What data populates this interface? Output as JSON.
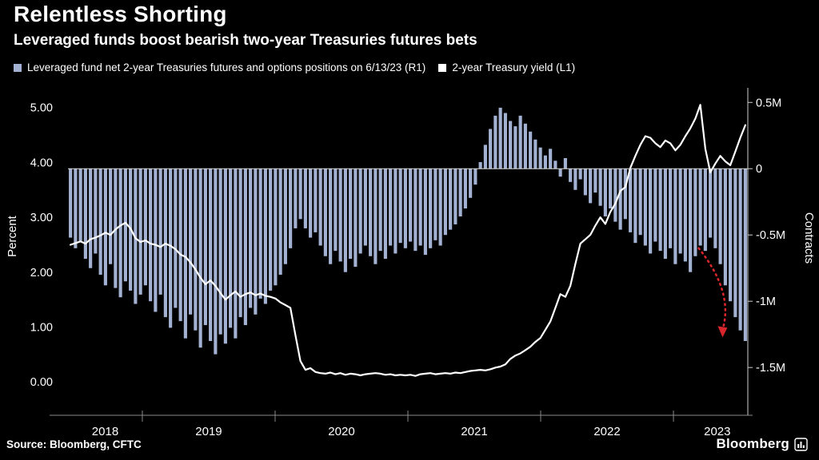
{
  "header": {
    "title": "Relentless Shorting",
    "subtitle": "Leveraged funds boost bearish two-year Treasuries futures bets"
  },
  "legend": {
    "items": [
      {
        "label": "Leveraged fund net 2-year Treasuries futures and options positions on 6/13/23 (R1)",
        "color": "#a3b2d2"
      },
      {
        "label": "2-year Treasury yield (L1)",
        "color": "#ffffff"
      }
    ]
  },
  "footer": {
    "source": "Source: Bloomberg, CFTC",
    "logo_text": "Bloomberg"
  },
  "colors": {
    "background": "#000000",
    "bar": "#a3b2d2",
    "line": "#ffffff",
    "axis_line": "#cfcfcf",
    "x_axis_line": "#8a8a8a",
    "zero_line": "#d8d8d8",
    "annotation_red": "#d8262c"
  },
  "chart_data": {
    "type": "combo",
    "title": "Relentless Shorting",
    "subtitle": "Leveraged funds boost bearish two-year Treasuries futures bets",
    "x_start": 2018.44,
    "x_end": 2023.56,
    "x_tick_labels": [
      "2018",
      "2019",
      "2020",
      "2021",
      "2022",
      "2023"
    ],
    "x_tick_label_positions": [
      2018.72,
      2019.5,
      2020.5,
      2021.5,
      2022.5,
      2023.33
    ],
    "x_boundary_ticks": [
      2019,
      2020,
      2021,
      2022,
      2023
    ],
    "grid": false,
    "legend_position": "top",
    "axes": {
      "left": {
        "label": "Percent",
        "range": [
          -0.39,
          5.36
        ],
        "ticks": [
          {
            "v": 5,
            "label": "5.00"
          },
          {
            "v": 4,
            "label": "4.00"
          },
          {
            "v": 3,
            "label": "3.00"
          },
          {
            "v": 2,
            "label": "2.00"
          },
          {
            "v": 1,
            "label": "1.00"
          },
          {
            "v": 0,
            "label": "0.00"
          }
        ]
      },
      "right": {
        "label": "Contracts",
        "range": [
          -1.77,
          0.61
        ],
        "ticks": [
          {
            "v": 0.5,
            "label": "0.5M"
          },
          {
            "v": 0,
            "label": "0"
          },
          {
            "v": -0.5,
            "label": "-0.5M"
          },
          {
            "v": -1,
            "label": "-1M"
          },
          {
            "v": -1.5,
            "label": "-1.5M"
          }
        ]
      }
    },
    "series": [
      {
        "name": "Leveraged fund net 2-year Treasuries futures and options positions on 6/13/23 (R1)",
        "type": "bar",
        "axis": "right",
        "unit": "M contracts",
        "color": "#a3b2d2",
        "values": [
          -0.52,
          -0.6,
          -0.55,
          -0.68,
          -0.75,
          -0.64,
          -0.8,
          -0.88,
          -0.72,
          -0.9,
          -0.97,
          -0.85,
          -0.92,
          -1.02,
          -0.95,
          -0.88,
          -1.0,
          -1.08,
          -0.95,
          -1.12,
          -1.2,
          -1.05,
          -1.15,
          -1.28,
          -1.1,
          -1.22,
          -1.35,
          -1.18,
          -1.3,
          -1.4,
          -1.25,
          -1.32,
          -1.2,
          -1.28,
          -1.12,
          -1.18,
          -1.05,
          -1.1,
          -0.98,
          -1.02,
          -0.92,
          -0.88,
          -0.8,
          -0.72,
          -0.6,
          -0.45,
          -0.38,
          -0.45,
          -0.52,
          -0.48,
          -0.58,
          -0.66,
          -0.72,
          -0.62,
          -0.7,
          -0.78,
          -0.68,
          -0.74,
          -0.64,
          -0.58,
          -0.66,
          -0.72,
          -0.62,
          -0.68,
          -0.58,
          -0.64,
          -0.56,
          -0.6,
          -0.55,
          -0.62,
          -0.58,
          -0.65,
          -0.6,
          -0.54,
          -0.58,
          -0.5,
          -0.46,
          -0.42,
          -0.36,
          -0.3,
          -0.22,
          -0.12,
          0.05,
          0.18,
          0.3,
          0.4,
          0.46,
          0.42,
          0.36,
          0.32,
          0.4,
          0.34,
          0.28,
          0.22,
          0.16,
          0.1,
          0.15,
          0.06,
          -0.06,
          0.08,
          -0.1,
          -0.16,
          -0.08,
          -0.2,
          -0.26,
          -0.18,
          -0.28,
          -0.36,
          -0.3,
          -0.4,
          -0.46,
          -0.38,
          -0.48,
          -0.56,
          -0.5,
          -0.58,
          -0.64,
          -0.55,
          -0.62,
          -0.68,
          -0.6,
          -0.72,
          -0.64,
          -0.7,
          -0.78,
          -0.66,
          -0.58,
          -0.62,
          -0.52,
          -0.6,
          -0.72,
          -0.88,
          -1.0,
          -1.12,
          -1.22,
          -1.3
        ]
      },
      {
        "name": "2-year Treasury yield (L1)",
        "type": "line",
        "axis": "left",
        "unit": "%",
        "color": "#ffffff",
        "values": [
          2.5,
          2.53,
          2.56,
          2.52,
          2.6,
          2.63,
          2.67,
          2.72,
          2.68,
          2.78,
          2.85,
          2.9,
          2.8,
          2.62,
          2.55,
          2.58,
          2.52,
          2.5,
          2.46,
          2.52,
          2.48,
          2.42,
          2.32,
          2.28,
          2.18,
          2.05,
          1.9,
          1.78,
          1.85,
          1.75,
          1.62,
          1.5,
          1.58,
          1.65,
          1.55,
          1.6,
          1.63,
          1.58,
          1.61,
          1.57,
          1.55,
          1.52,
          1.45,
          1.4,
          1.35,
          0.85,
          0.38,
          0.22,
          0.25,
          0.18,
          0.16,
          0.15,
          0.17,
          0.14,
          0.16,
          0.13,
          0.15,
          0.14,
          0.12,
          0.14,
          0.15,
          0.16,
          0.15,
          0.13,
          0.14,
          0.12,
          0.13,
          0.12,
          0.13,
          0.11,
          0.14,
          0.15,
          0.16,
          0.14,
          0.15,
          0.16,
          0.15,
          0.17,
          0.16,
          0.18,
          0.2,
          0.21,
          0.22,
          0.21,
          0.23,
          0.26,
          0.28,
          0.32,
          0.42,
          0.48,
          0.52,
          0.58,
          0.64,
          0.73,
          0.8,
          0.95,
          1.1,
          1.35,
          1.6,
          1.55,
          1.75,
          2.15,
          2.52,
          2.6,
          2.68,
          2.85,
          3.0,
          2.88,
          3.1,
          3.25,
          3.48,
          3.55,
          3.9,
          4.12,
          4.32,
          4.48,
          4.45,
          4.35,
          4.28,
          4.4,
          4.35,
          4.22,
          4.32,
          4.48,
          4.62,
          4.8,
          5.05,
          4.25,
          3.82,
          3.98,
          4.12,
          4.02,
          3.95,
          4.2,
          4.45,
          4.68
        ]
      }
    ],
    "annotation": {
      "type": "dotted-arrow",
      "axis": "right",
      "color": "#d8262c",
      "from_x": 2023.19,
      "from_val": -0.6,
      "to_x": 2023.37,
      "to_val": -1.26
    }
  }
}
